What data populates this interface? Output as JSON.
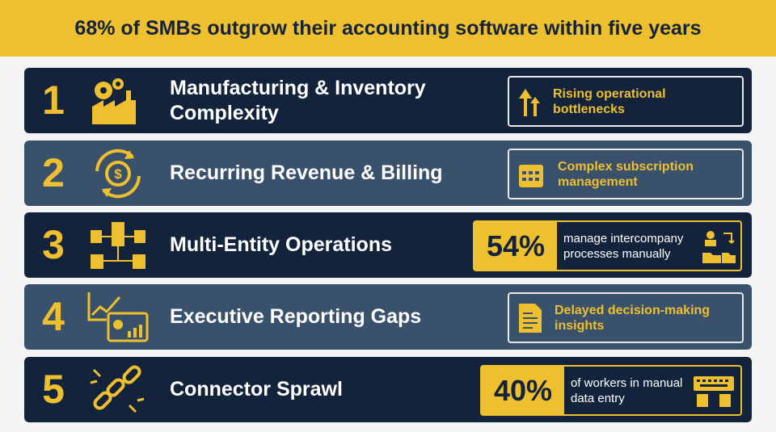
{
  "header": {
    "title": "68% of SMBs outgrow their accounting software within five years"
  },
  "rows": [
    {
      "number": "1",
      "title": "Manufacturing & Inventory Complexity",
      "callout": "Rising operational bottlenecks"
    },
    {
      "number": "2",
      "title": "Recurring Revenue & Billing",
      "callout": "Complex subscription management"
    },
    {
      "number": "3",
      "title": "Multi-Entity Operations",
      "stat": "54%",
      "callout": "manage intercompany processes manually"
    },
    {
      "number": "4",
      "title": "Executive Reporting Gaps",
      "callout": "Delayed decision-making insights"
    },
    {
      "number": "5",
      "title": "Connector Sprawl",
      "stat": "40%",
      "callout": "of workers in manual data entry"
    }
  ]
}
